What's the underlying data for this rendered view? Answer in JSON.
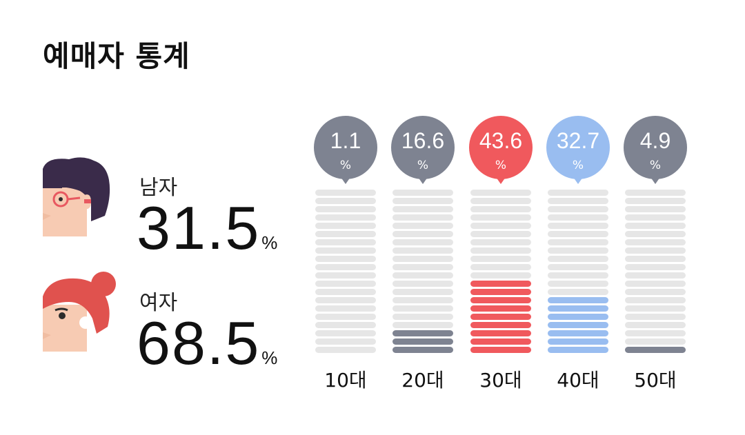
{
  "title": "예매자 통계",
  "gender": {
    "male": {
      "label": "남자",
      "value": "31.5",
      "unit": "%"
    },
    "female": {
      "label": "여자",
      "value": "68.5",
      "unit": "%"
    }
  },
  "colors": {
    "bar_empty": "#e6e6e6",
    "gray": "#7e8391",
    "red": "#f0595d",
    "blue": "#99bdf0"
  },
  "chart_data": {
    "type": "bar",
    "categories": [
      "10대",
      "20대",
      "30대",
      "40대",
      "50대"
    ],
    "values": [
      1.1,
      16.6,
      43.6,
      32.7,
      4.9
    ],
    "unit": "%",
    "filled_segments": [
      0,
      3,
      9,
      7,
      1
    ],
    "total_segments": 20,
    "bar_colors": [
      "#7e8391",
      "#7e8391",
      "#f0595d",
      "#99bdf0",
      "#7e8391"
    ],
    "bubble_colors": [
      "#7e8391",
      "#7e8391",
      "#f0595d",
      "#99bdf0",
      "#7e8391"
    ]
  }
}
